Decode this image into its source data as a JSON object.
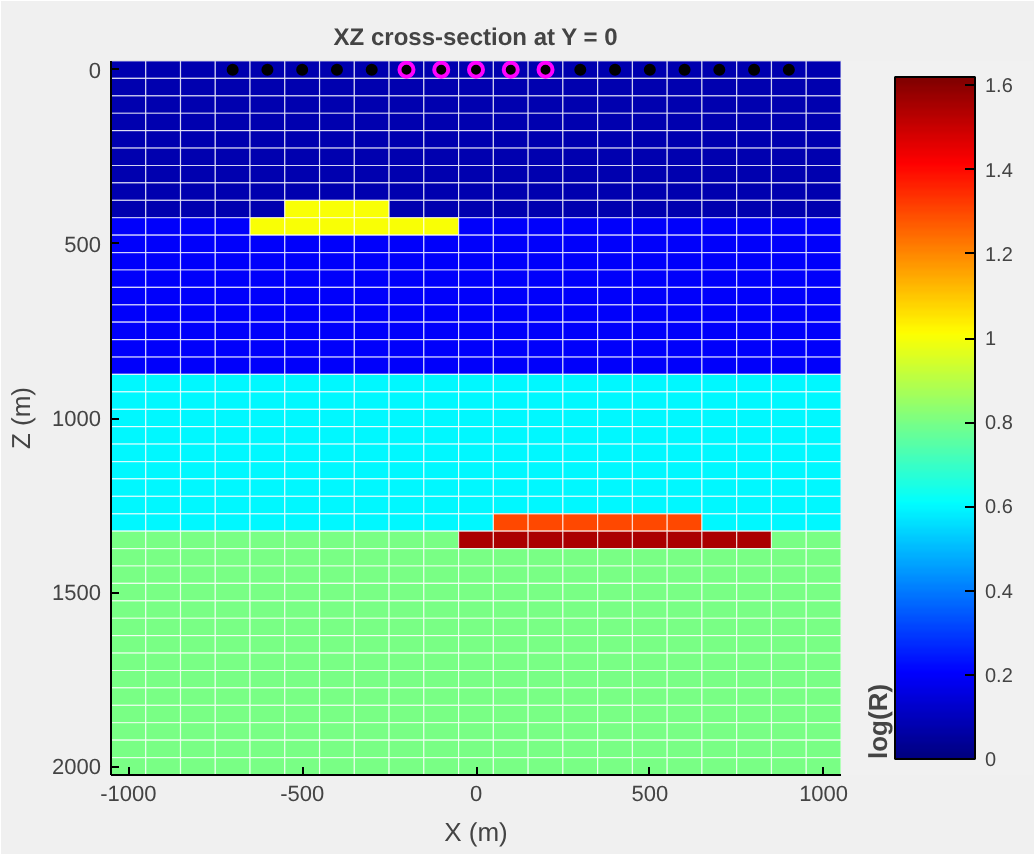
{
  "chart_data": {
    "type": "heatmap",
    "title": "XZ cross-section at Y = 0",
    "xlabel": "X (m)",
    "ylabel": "Z (m)",
    "clabel": "log(R)",
    "categories": [
      "-1000",
      null,
      null,
      null,
      null,
      "-500",
      null,
      null,
      null,
      null,
      "0",
      null,
      null,
      null,
      null,
      "500",
      null,
      null,
      null,
      null,
      "1000"
    ],
    "y_categories": [
      "0",
      null,
      null,
      null,
      null,
      null,
      null,
      null,
      null,
      null,
      "500",
      null,
      null,
      null,
      null,
      null,
      null,
      null,
      null,
      null,
      "1000",
      null,
      null,
      null,
      null,
      null,
      null,
      null,
      null,
      null,
      "1500",
      null,
      null,
      null,
      null,
      null,
      null,
      null,
      null,
      null,
      "2000"
    ],
    "clim": [
      0,
      1.62
    ],
    "cticks": [
      0,
      0.2,
      0.4,
      0.6,
      0.8,
      1,
      1.2,
      1.4,
      1.6
    ],
    "cells": [
      [
        0.08,
        0.08,
        0.08,
        0.08,
        0.08,
        0.08,
        0.08,
        0.08,
        0.08,
        0.08,
        0.08,
        0.08,
        0.08,
        0.08,
        0.08,
        0.08,
        0.08,
        0.08,
        0.08,
        0.08,
        0.08
      ],
      [
        0.08,
        0.08,
        0.08,
        0.08,
        0.08,
        0.08,
        0.08,
        0.08,
        0.08,
        0.08,
        0.08,
        0.08,
        0.08,
        0.08,
        0.08,
        0.08,
        0.08,
        0.08,
        0.08,
        0.08,
        0.08
      ],
      [
        0.08,
        0.08,
        0.08,
        0.08,
        0.08,
        0.08,
        0.08,
        0.08,
        0.08,
        0.08,
        0.08,
        0.08,
        0.08,
        0.08,
        0.08,
        0.08,
        0.08,
        0.08,
        0.08,
        0.08,
        0.08
      ],
      [
        0.08,
        0.08,
        0.08,
        0.08,
        0.08,
        0.08,
        0.08,
        0.08,
        0.08,
        0.08,
        0.08,
        0.08,
        0.08,
        0.08,
        0.08,
        0.08,
        0.08,
        0.08,
        0.08,
        0.08,
        0.08
      ],
      [
        0.08,
        0.08,
        0.08,
        0.08,
        0.08,
        0.08,
        0.08,
        0.08,
        0.08,
        0.08,
        0.08,
        0.08,
        0.08,
        0.08,
        0.08,
        0.08,
        0.08,
        0.08,
        0.08,
        0.08,
        0.08
      ],
      [
        0.08,
        0.08,
        0.08,
        0.08,
        0.08,
        0.08,
        0.08,
        0.08,
        0.08,
        0.08,
        0.08,
        0.08,
        0.08,
        0.08,
        0.08,
        0.08,
        0.08,
        0.08,
        0.08,
        0.08,
        0.08
      ],
      [
        0.08,
        0.08,
        0.08,
        0.08,
        0.08,
        0.08,
        0.08,
        0.08,
        0.08,
        0.08,
        0.08,
        0.08,
        0.08,
        0.08,
        0.08,
        0.08,
        0.08,
        0.08,
        0.08,
        0.08,
        0.08
      ],
      [
        0.08,
        0.08,
        0.08,
        0.08,
        0.08,
        0.08,
        0.08,
        0.08,
        0.08,
        0.08,
        0.08,
        0.08,
        0.08,
        0.08,
        0.08,
        0.08,
        0.08,
        0.08,
        0.08,
        0.08,
        0.08
      ],
      [
        0.08,
        0.08,
        0.08,
        0.08,
        0.08,
        1.0,
        1.0,
        1.0,
        0.08,
        0.08,
        0.08,
        0.08,
        0.08,
        0.08,
        0.08,
        0.08,
        0.08,
        0.08,
        0.08,
        0.08,
        0.08
      ],
      [
        0.2,
        0.2,
        0.2,
        0.2,
        1.0,
        1.0,
        1.0,
        1.0,
        1.0,
        1.0,
        0.2,
        0.2,
        0.2,
        0.2,
        0.2,
        0.2,
        0.2,
        0.2,
        0.2,
        0.2,
        0.2
      ],
      [
        0.2,
        0.2,
        0.2,
        0.2,
        0.2,
        0.2,
        0.2,
        0.2,
        0.2,
        0.2,
        0.2,
        0.2,
        0.2,
        0.2,
        0.2,
        0.2,
        0.2,
        0.2,
        0.2,
        0.2,
        0.2
      ],
      [
        0.2,
        0.2,
        0.2,
        0.2,
        0.2,
        0.2,
        0.2,
        0.2,
        0.2,
        0.2,
        0.2,
        0.2,
        0.2,
        0.2,
        0.2,
        0.2,
        0.2,
        0.2,
        0.2,
        0.2,
        0.2
      ],
      [
        0.2,
        0.2,
        0.2,
        0.2,
        0.2,
        0.2,
        0.2,
        0.2,
        0.2,
        0.2,
        0.2,
        0.2,
        0.2,
        0.2,
        0.2,
        0.2,
        0.2,
        0.2,
        0.2,
        0.2,
        0.2
      ],
      [
        0.2,
        0.2,
        0.2,
        0.2,
        0.2,
        0.2,
        0.2,
        0.2,
        0.2,
        0.2,
        0.2,
        0.2,
        0.2,
        0.2,
        0.2,
        0.2,
        0.2,
        0.2,
        0.2,
        0.2,
        0.2
      ],
      [
        0.2,
        0.2,
        0.2,
        0.2,
        0.2,
        0.2,
        0.2,
        0.2,
        0.2,
        0.2,
        0.2,
        0.2,
        0.2,
        0.2,
        0.2,
        0.2,
        0.2,
        0.2,
        0.2,
        0.2,
        0.2
      ],
      [
        0.2,
        0.2,
        0.2,
        0.2,
        0.2,
        0.2,
        0.2,
        0.2,
        0.2,
        0.2,
        0.2,
        0.2,
        0.2,
        0.2,
        0.2,
        0.2,
        0.2,
        0.2,
        0.2,
        0.2,
        0.2
      ],
      [
        0.2,
        0.2,
        0.2,
        0.2,
        0.2,
        0.2,
        0.2,
        0.2,
        0.2,
        0.2,
        0.2,
        0.2,
        0.2,
        0.2,
        0.2,
        0.2,
        0.2,
        0.2,
        0.2,
        0.2,
        0.2
      ],
      [
        0.2,
        0.2,
        0.2,
        0.2,
        0.2,
        0.2,
        0.2,
        0.2,
        0.2,
        0.2,
        0.2,
        0.2,
        0.2,
        0.2,
        0.2,
        0.2,
        0.2,
        0.2,
        0.2,
        0.2,
        0.2
      ],
      [
        0.6,
        0.6,
        0.6,
        0.6,
        0.6,
        0.6,
        0.6,
        0.6,
        0.6,
        0.6,
        0.6,
        0.6,
        0.6,
        0.6,
        0.6,
        0.6,
        0.6,
        0.6,
        0.6,
        0.6,
        0.6
      ],
      [
        0.6,
        0.6,
        0.6,
        0.6,
        0.6,
        0.6,
        0.6,
        0.6,
        0.6,
        0.6,
        0.6,
        0.6,
        0.6,
        0.6,
        0.6,
        0.6,
        0.6,
        0.6,
        0.6,
        0.6,
        0.6
      ],
      [
        0.6,
        0.6,
        0.6,
        0.6,
        0.6,
        0.6,
        0.6,
        0.6,
        0.6,
        0.6,
        0.6,
        0.6,
        0.6,
        0.6,
        0.6,
        0.6,
        0.6,
        0.6,
        0.6,
        0.6,
        0.6
      ],
      [
        0.6,
        0.6,
        0.6,
        0.6,
        0.6,
        0.6,
        0.6,
        0.6,
        0.6,
        0.6,
        0.6,
        0.6,
        0.6,
        0.6,
        0.6,
        0.6,
        0.6,
        0.6,
        0.6,
        0.6,
        0.6
      ],
      [
        0.6,
        0.6,
        0.6,
        0.6,
        0.6,
        0.6,
        0.6,
        0.6,
        0.6,
        0.6,
        0.6,
        0.6,
        0.6,
        0.6,
        0.6,
        0.6,
        0.6,
        0.6,
        0.6,
        0.6,
        0.6
      ],
      [
        0.6,
        0.6,
        0.6,
        0.6,
        0.6,
        0.6,
        0.6,
        0.6,
        0.6,
        0.6,
        0.6,
        0.6,
        0.6,
        0.6,
        0.6,
        0.6,
        0.6,
        0.6,
        0.6,
        0.6,
        0.6
      ],
      [
        0.6,
        0.6,
        0.6,
        0.6,
        0.6,
        0.6,
        0.6,
        0.6,
        0.6,
        0.6,
        0.6,
        0.6,
        0.6,
        0.6,
        0.6,
        0.6,
        0.6,
        0.6,
        0.6,
        0.6,
        0.6
      ],
      [
        0.6,
        0.6,
        0.6,
        0.6,
        0.6,
        0.6,
        0.6,
        0.6,
        0.6,
        0.6,
        0.6,
        0.6,
        0.6,
        0.6,
        0.6,
        0.6,
        0.6,
        0.6,
        0.6,
        0.6,
        0.6
      ],
      [
        0.6,
        0.6,
        0.6,
        0.6,
        0.6,
        0.6,
        0.6,
        0.6,
        0.6,
        0.6,
        0.6,
        1.3,
        1.3,
        1.3,
        1.3,
        1.3,
        1.3,
        0.6,
        0.6,
        0.6,
        0.6
      ],
      [
        0.8,
        0.8,
        0.8,
        0.8,
        0.8,
        0.8,
        0.8,
        0.8,
        0.8,
        0.8,
        1.55,
        1.55,
        1.55,
        1.55,
        1.55,
        1.55,
        1.55,
        1.55,
        1.55,
        0.8,
        0.8
      ],
      [
        0.8,
        0.8,
        0.8,
        0.8,
        0.8,
        0.8,
        0.8,
        0.8,
        0.8,
        0.8,
        0.8,
        0.8,
        0.8,
        0.8,
        0.8,
        0.8,
        0.8,
        0.8,
        0.8,
        0.8,
        0.8
      ],
      [
        0.8,
        0.8,
        0.8,
        0.8,
        0.8,
        0.8,
        0.8,
        0.8,
        0.8,
        0.8,
        0.8,
        0.8,
        0.8,
        0.8,
        0.8,
        0.8,
        0.8,
        0.8,
        0.8,
        0.8,
        0.8
      ],
      [
        0.8,
        0.8,
        0.8,
        0.8,
        0.8,
        0.8,
        0.8,
        0.8,
        0.8,
        0.8,
        0.8,
        0.8,
        0.8,
        0.8,
        0.8,
        0.8,
        0.8,
        0.8,
        0.8,
        0.8,
        0.8
      ],
      [
        0.8,
        0.8,
        0.8,
        0.8,
        0.8,
        0.8,
        0.8,
        0.8,
        0.8,
        0.8,
        0.8,
        0.8,
        0.8,
        0.8,
        0.8,
        0.8,
        0.8,
        0.8,
        0.8,
        0.8,
        0.8
      ],
      [
        0.8,
        0.8,
        0.8,
        0.8,
        0.8,
        0.8,
        0.8,
        0.8,
        0.8,
        0.8,
        0.8,
        0.8,
        0.8,
        0.8,
        0.8,
        0.8,
        0.8,
        0.8,
        0.8,
        0.8,
        0.8
      ],
      [
        0.8,
        0.8,
        0.8,
        0.8,
        0.8,
        0.8,
        0.8,
        0.8,
        0.8,
        0.8,
        0.8,
        0.8,
        0.8,
        0.8,
        0.8,
        0.8,
        0.8,
        0.8,
        0.8,
        0.8,
        0.8
      ],
      [
        0.8,
        0.8,
        0.8,
        0.8,
        0.8,
        0.8,
        0.8,
        0.8,
        0.8,
        0.8,
        0.8,
        0.8,
        0.8,
        0.8,
        0.8,
        0.8,
        0.8,
        0.8,
        0.8,
        0.8,
        0.8
      ],
      [
        0.8,
        0.8,
        0.8,
        0.8,
        0.8,
        0.8,
        0.8,
        0.8,
        0.8,
        0.8,
        0.8,
        0.8,
        0.8,
        0.8,
        0.8,
        0.8,
        0.8,
        0.8,
        0.8,
        0.8,
        0.8
      ],
      [
        0.8,
        0.8,
        0.8,
        0.8,
        0.8,
        0.8,
        0.8,
        0.8,
        0.8,
        0.8,
        0.8,
        0.8,
        0.8,
        0.8,
        0.8,
        0.8,
        0.8,
        0.8,
        0.8,
        0.8,
        0.8
      ],
      [
        0.8,
        0.8,
        0.8,
        0.8,
        0.8,
        0.8,
        0.8,
        0.8,
        0.8,
        0.8,
        0.8,
        0.8,
        0.8,
        0.8,
        0.8,
        0.8,
        0.8,
        0.8,
        0.8,
        0.8,
        0.8
      ],
      [
        0.8,
        0.8,
        0.8,
        0.8,
        0.8,
        0.8,
        0.8,
        0.8,
        0.8,
        0.8,
        0.8,
        0.8,
        0.8,
        0.8,
        0.8,
        0.8,
        0.8,
        0.8,
        0.8,
        0.8,
        0.8
      ],
      [
        0.8,
        0.8,
        0.8,
        0.8,
        0.8,
        0.8,
        0.8,
        0.8,
        0.8,
        0.8,
        0.8,
        0.8,
        0.8,
        0.8,
        0.8,
        0.8,
        0.8,
        0.8,
        0.8,
        0.8,
        0.8
      ],
      [
        0.8,
        0.8,
        0.8,
        0.8,
        0.8,
        0.8,
        0.8,
        0.8,
        0.8,
        0.8,
        0.8,
        0.8,
        0.8,
        0.8,
        0.8,
        0.8,
        0.8,
        0.8,
        0.8,
        0.8,
        0.8
      ]
    ],
    "marker": "circle",
    "series": [
      {
        "type": "scatter",
        "color": "#000000",
        "values": [
          null,
          null,
          null,
          0,
          0,
          0,
          0,
          0,
          null,
          null,
          null,
          null,
          null,
          0,
          0,
          0,
          0,
          0,
          0,
          0,
          null
        ]
      },
      {
        "type": "scatter",
        "color": "#ff00ff",
        "values": [
          null,
          null,
          null,
          null,
          null,
          null,
          null,
          null,
          0,
          0,
          0,
          0,
          0,
          null,
          null,
          null,
          null,
          null,
          null,
          null,
          null
        ]
      }
    ]
  }
}
